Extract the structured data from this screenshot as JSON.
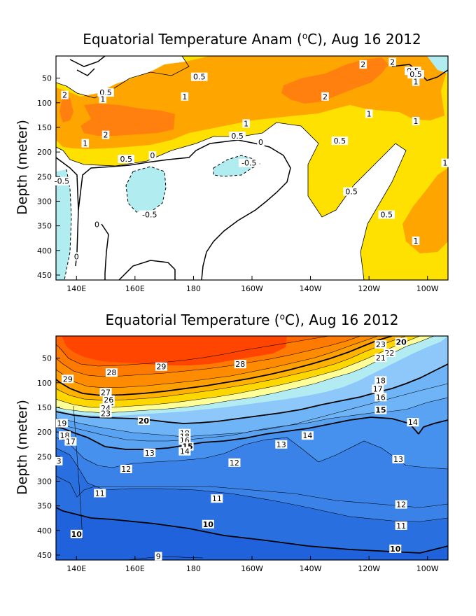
{
  "chart_data": [
    {
      "type": "heatmap",
      "title": "Equatorial Temperature Anam (°C), Aug 16 2012",
      "title_text": "Equatorial Temperature Anam (",
      "title_unit": "C), Aug 16 2012",
      "ylabel": "Depth (meter)",
      "xlabel": "",
      "x_ticks": [
        "140E",
        "160E",
        "180",
        "160W",
        "140W",
        "120W",
        "100W"
      ],
      "y_ticks": [
        50,
        100,
        150,
        200,
        250,
        300,
        350,
        400,
        450
      ],
      "ylim": [
        460,
        5
      ],
      "xlim": [
        133,
        267
      ],
      "contour_levels": [
        -0.5,
        0,
        0.5,
        1,
        2
      ],
      "fill_colors": {
        "below_-0.5": "#b0ecf0",
        "-0.5_to_0.5": "#ffffff",
        "0.5_to_1": "#ffe100",
        "1_to_2": "#ffa500",
        "above_2": "#ff7f0f"
      },
      "contour_labels": [
        {
          "text": "0.5",
          "lon": 182,
          "depth": 50
        },
        {
          "text": "2",
          "lon": 136,
          "depth": 87
        },
        {
          "text": "0.5",
          "lon": 150,
          "depth": 82
        },
        {
          "text": "1",
          "lon": 149,
          "depth": 95
        },
        {
          "text": "1",
          "lon": 177,
          "depth": 90
        },
        {
          "text": "2",
          "lon": 225,
          "depth": 90
        },
        {
          "text": "2",
          "lon": 238,
          "depth": 25
        },
        {
          "text": "2",
          "lon": 248,
          "depth": 20
        },
        {
          "text": "0.5",
          "lon": 255,
          "depth": 38
        },
        {
          "text": "0.5",
          "lon": 256,
          "depth": 45
        },
        {
          "text": "1",
          "lon": 256,
          "depth": 60
        },
        {
          "text": "1",
          "lon": 240,
          "depth": 125
        },
        {
          "text": "1",
          "lon": 256,
          "depth": 140
        },
        {
          "text": "1",
          "lon": 198,
          "depth": 145
        },
        {
          "text": "2",
          "lon": 150,
          "depth": 168
        },
        {
          "text": "1",
          "lon": 143,
          "depth": 185
        },
        {
          "text": "0.5",
          "lon": 195,
          "depth": 170
        },
        {
          "text": "0",
          "lon": 203,
          "depth": 183
        },
        {
          "text": "0.5",
          "lon": 230,
          "depth": 180
        },
        {
          "text": "0.5",
          "lon": 157,
          "depth": 217
        },
        {
          "text": "0",
          "lon": 166,
          "depth": 210
        },
        {
          "text": "-0.5",
          "lon": 199,
          "depth": 225
        },
        {
          "text": "1",
          "lon": 266,
          "depth": 225
        },
        {
          "text": "-0.5",
          "lon": 135,
          "depth": 262
        },
        {
          "text": "0.5",
          "lon": 234,
          "depth": 283
        },
        {
          "text": "0.5",
          "lon": 246,
          "depth": 330
        },
        {
          "text": "-0.5",
          "lon": 165,
          "depth": 330
        },
        {
          "text": "0",
          "lon": 147,
          "depth": 350
        },
        {
          "text": "1",
          "lon": 256,
          "depth": 383
        },
        {
          "text": "0",
          "lon": 140,
          "depth": 415
        }
      ]
    },
    {
      "type": "heatmap",
      "title": "Equatorial Temperature (°C), Aug 16 2012",
      "title_text": "Equatorial Temperature (",
      "title_unit": "C), Aug 16 2012",
      "ylabel": "Depth (meter)",
      "xlabel": "",
      "x_ticks": [
        "140E",
        "160E",
        "180",
        "160W",
        "140W",
        "120W",
        "100W"
      ],
      "y_ticks": [
        50,
        100,
        150,
        200,
        250,
        300,
        350,
        400,
        450
      ],
      "ylim": [
        460,
        5
      ],
      "xlim": [
        133,
        267
      ],
      "contour_levels": [
        9,
        10,
        11,
        12,
        13,
        14,
        15,
        16,
        17,
        18,
        19,
        20,
        21,
        22,
        23,
        24,
        25,
        26,
        27,
        28,
        29
      ],
      "bold_levels": [
        10,
        15,
        20,
        25
      ],
      "fill_colors": {
        "below_10": "#1f62dc",
        "10_to_11": "#2a6fe0",
        "11_to_12": "#3a82e8",
        "12_to_14": "#4690ee",
        "14_to_15": "#5aa2f2",
        "15_to_16": "#6eb4f6",
        "16_to_20": "#8ec8fa",
        "20_to_21": "#b2ecf2",
        "21_to_22": "#ffff99",
        "22_to_24": "#ffd700",
        "24_to_25": "#ffb300",
        "25_to_26": "#ffa000",
        "26_to_27": "#ff8c00",
        "27_to_28": "#ff7a00",
        "28_to_29": "#ff6600",
        "above_29": "#ff4500"
      },
      "contour_labels": [
        {
          "text": "29",
          "lon": 137,
          "depth": 95
        },
        {
          "text": "28",
          "lon": 152,
          "depth": 82
        },
        {
          "text": "29",
          "lon": 169,
          "depth": 70
        },
        {
          "text": "28",
          "lon": 196,
          "depth": 65
        },
        {
          "text": "27",
          "lon": 150,
          "depth": 122
        },
        {
          "text": "25",
          "lon": 151,
          "depth": 143
        },
        {
          "text": "26",
          "lon": 151,
          "depth": 137
        },
        {
          "text": "24",
          "lon": 150,
          "depth": 154
        },
        {
          "text": "23",
          "lon": 150,
          "depth": 165
        },
        {
          "text": "20",
          "lon": 163,
          "depth": 180
        },
        {
          "text": "19",
          "lon": 135,
          "depth": 185
        },
        {
          "text": "18",
          "lon": 136,
          "depth": 210
        },
        {
          "text": "17",
          "lon": 138,
          "depth": 222
        },
        {
          "text": "19",
          "lon": 177,
          "depth": 205
        },
        {
          "text": "18",
          "lon": 177,
          "depth": 212
        },
        {
          "text": "16",
          "lon": 177,
          "depth": 220
        },
        {
          "text": "15",
          "lon": 178,
          "depth": 232
        },
        {
          "text": "14",
          "lon": 177,
          "depth": 242
        },
        {
          "text": "13",
          "lon": 165,
          "depth": 245
        },
        {
          "text": "14",
          "lon": 219,
          "depth": 210
        },
        {
          "text": "13",
          "lon": 210,
          "depth": 228
        },
        {
          "text": "23",
          "lon": 244,
          "depth": 25
        },
        {
          "text": "20",
          "lon": 251,
          "depth": 20
        },
        {
          "text": "22",
          "lon": 247,
          "depth": 42
        },
        {
          "text": "21",
          "lon": 244,
          "depth": 52
        },
        {
          "text": "18",
          "lon": 244,
          "depth": 98
        },
        {
          "text": "17",
          "lon": 243,
          "depth": 115
        },
        {
          "text": "16",
          "lon": 244,
          "depth": 132
        },
        {
          "text": "15",
          "lon": 244,
          "depth": 158
        },
        {
          "text": "14",
          "lon": 255,
          "depth": 183
        },
        {
          "text": "13",
          "lon": 250,
          "depth": 258
        },
        {
          "text": "3",
          "lon": 134,
          "depth": 262
        },
        {
          "text": "12",
          "lon": 157,
          "depth": 278
        },
        {
          "text": "12",
          "lon": 194,
          "depth": 265
        },
        {
          "text": "11",
          "lon": 148,
          "depth": 327
        },
        {
          "text": "11",
          "lon": 188,
          "depth": 338
        },
        {
          "text": "12",
          "lon": 251,
          "depth": 350
        },
        {
          "text": "10",
          "lon": 140,
          "depth": 410
        },
        {
          "text": "10",
          "lon": 185,
          "depth": 390
        },
        {
          "text": "11",
          "lon": 251,
          "depth": 393
        },
        {
          "text": "10",
          "lon": 249,
          "depth": 440
        },
        {
          "text": "9",
          "lon": 168,
          "depth": 455
        }
      ]
    }
  ]
}
